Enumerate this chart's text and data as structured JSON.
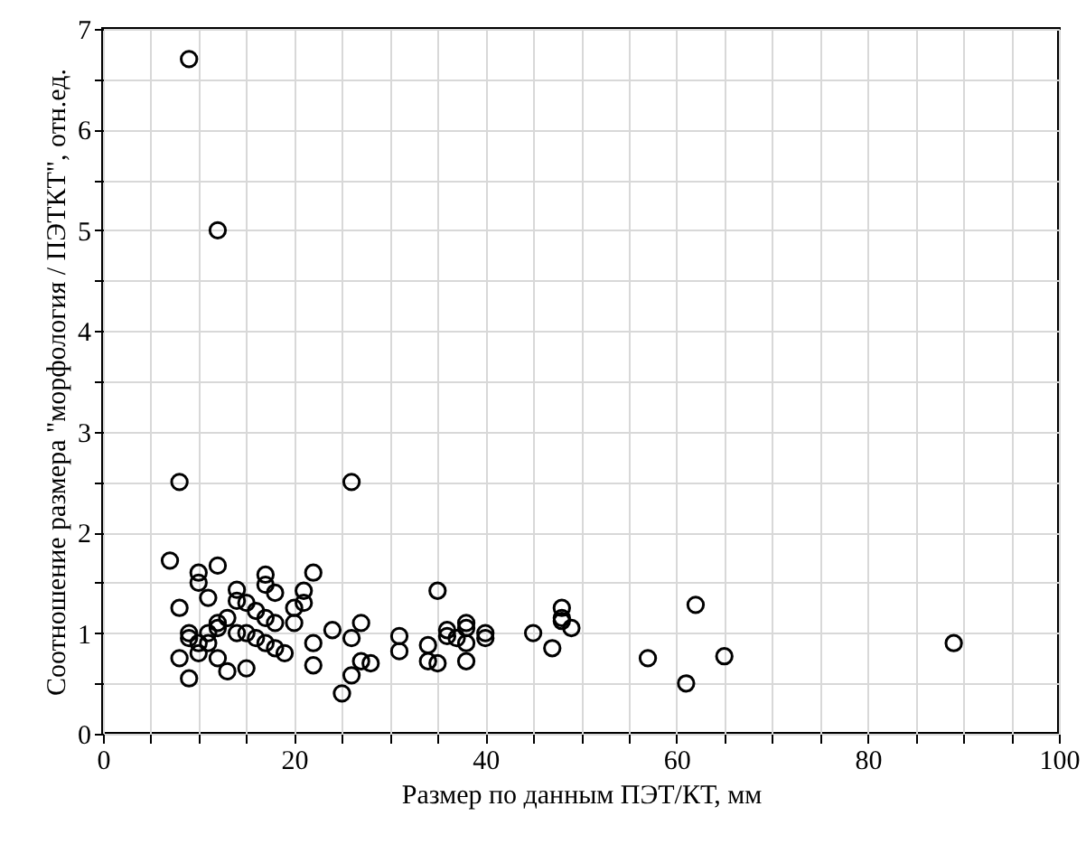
{
  "chart_data": {
    "type": "scatter",
    "xlabel": "Размер по данным ПЭТ/КТ, мм",
    "ylabel": "Соотношение размера \"морфология / ПЭТКТ\", отн.ед.",
    "xlim": [
      0,
      100
    ],
    "ylim": [
      0,
      7
    ],
    "xticks": [
      0,
      {
        "value": 5,
        "label": null
      },
      {
        "value": 10,
        "label": null
      },
      {
        "value": 15,
        "label": null
      },
      20,
      {
        "value": 25,
        "label": null
      },
      {
        "value": 30,
        "label": null
      },
      {
        "value": 35,
        "label": null
      },
      40,
      {
        "value": 45,
        "label": null
      },
      {
        "value": 50,
        "label": null
      },
      {
        "value": 55,
        "label": null
      },
      60,
      {
        "value": 65,
        "label": null
      },
      {
        "value": 70,
        "label": null
      },
      {
        "value": 75,
        "label": null
      },
      80,
      {
        "value": 85,
        "label": null
      },
      {
        "value": 90,
        "label": null
      },
      {
        "value": 95,
        "label": null
      },
      100
    ],
    "yticks": [
      0,
      {
        "value": 0.5,
        "label": null
      },
      1,
      {
        "value": 1.5,
        "label": null
      },
      2,
      {
        "value": 2.5,
        "label": null
      },
      3,
      {
        "value": 3.5,
        "label": null
      },
      4,
      {
        "value": 4.5,
        "label": null
      },
      5,
      {
        "value": 5.5,
        "label": null
      },
      6,
      {
        "value": 6.5,
        "label": null
      },
      7
    ],
    "grid": true,
    "marker": "circle",
    "series": [
      {
        "color": "#000000",
        "x": [
          9,
          12,
          8,
          26,
          7,
          12,
          17,
          22,
          10,
          10,
          8,
          11,
          14,
          14,
          15,
          17,
          18,
          21,
          21,
          20,
          16,
          17,
          18,
          13,
          12,
          12,
          11,
          9,
          9,
          10,
          8,
          10,
          11,
          12,
          13,
          15,
          9,
          14,
          15,
          16,
          17,
          18,
          19,
          22,
          22,
          20,
          24,
          25,
          26,
          26,
          27,
          27,
          28,
          31,
          31,
          34,
          34,
          35,
          35,
          36,
          36,
          37,
          38,
          38,
          38,
          38,
          40,
          40,
          45,
          47,
          48,
          48,
          48,
          49,
          57,
          61,
          62,
          65,
          89
        ],
        "values": [
          6.7,
          5,
          2.5,
          2.5,
          1.72,
          1.67,
          1.58,
          1.6,
          1.6,
          1.5,
          1.25,
          1.35,
          1.43,
          1.32,
          1.3,
          1.48,
          1.4,
          1.42,
          1.3,
          1.25,
          1.22,
          1.15,
          1.1,
          1.15,
          1.1,
          1.05,
          1.0,
          1.0,
          0.95,
          0.9,
          0.75,
          0.8,
          0.9,
          0.75,
          0.62,
          0.65,
          0.55,
          1.0,
          1.0,
          0.95,
          0.9,
          0.85,
          0.8,
          0.9,
          0.68,
          1.1,
          1.03,
          0.4,
          0.58,
          0.95,
          1.1,
          0.72,
          0.7,
          0.97,
          0.82,
          0.88,
          0.72,
          1.42,
          0.7,
          1.03,
          0.97,
          0.95,
          1.1,
          1.05,
          0.9,
          0.72,
          1.0,
          0.95,
          1.0,
          0.85,
          1.25,
          1.15,
          1.12,
          1.05,
          0.75,
          0.5,
          1.28,
          0.77,
          0.9
        ]
      }
    ]
  }
}
